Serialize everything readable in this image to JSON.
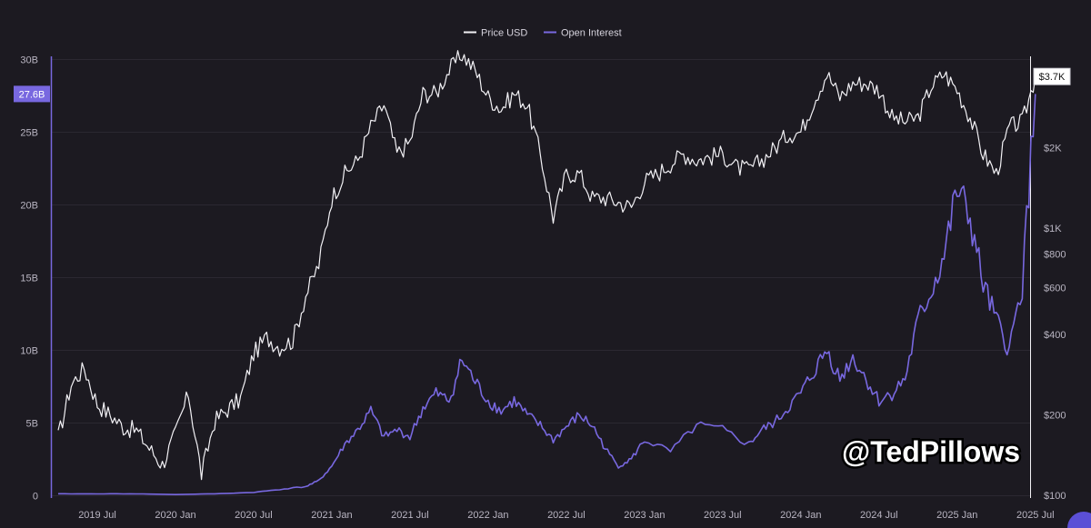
{
  "watermark": "@TedPillows",
  "colors": {
    "background": "#1c1a21",
    "price": "#f2f1f5",
    "open_interest": "#7868e0",
    "grid": "#2b2831",
    "axis_text": "#b9b5c2"
  },
  "chart_data": {
    "type": "line",
    "legend": {
      "placement": "top-center",
      "entries": [
        "Price USD",
        "Open Interest"
      ]
    },
    "grid": {
      "horizontal": true,
      "vertical": false
    },
    "x_axis": {
      "ticks": [
        "2019 Jul",
        "2020 Jan",
        "2020 Jul",
        "2021 Jan",
        "2021 Jul",
        "2022 Jan",
        "2022 Jul",
        "2023 Jan",
        "2023 Jul",
        "2024 Jan",
        "2024 Jul",
        "2025 Jan",
        "2025 Jul"
      ],
      "range": [
        "2019 Apr",
        "2025 Jul"
      ]
    },
    "y_left": {
      "ticks": [
        "0",
        "5B",
        "10B",
        "15B",
        "20B",
        "25B",
        "30B"
      ],
      "tick_values": [
        0,
        5,
        10,
        15,
        20,
        25,
        30
      ],
      "unit": "billions",
      "range": [
        0,
        30
      ],
      "marker": {
        "label": "27.6B",
        "value": 27.6
      }
    },
    "y_right": {
      "scale": "log",
      "ticks": [
        "$100",
        "$200",
        "$400",
        "$600",
        "$800",
        "$1K",
        "$2K"
      ],
      "tick_values": [
        100,
        200,
        400,
        600,
        800,
        1000,
        2000
      ],
      "range": [
        100,
        4300
      ],
      "marker": {
        "label": "$3.7K",
        "value": 3700
      }
    },
    "series": [
      {
        "name": "Price USD",
        "axis": "right",
        "x": [
          "2019 Apr",
          "2019 May",
          "2019 Jun",
          "2019 Jul",
          "2019 Aug",
          "2019 Sep",
          "2019 Oct",
          "2019 Nov",
          "2019 Dec",
          "2020 Jan",
          "2020 Feb",
          "2020 Mar",
          "2020 Apr",
          "2020 May",
          "2020 Jun",
          "2020 Jul",
          "2020 Aug",
          "2020 Sep",
          "2020 Oct",
          "2020 Nov",
          "2020 Dec",
          "2021 Jan",
          "2021 Feb",
          "2021 Mar",
          "2021 Apr",
          "2021 May",
          "2021 Jun",
          "2021 Jul",
          "2021 Aug",
          "2021 Sep",
          "2021 Oct",
          "2021 Nov",
          "2021 Dec",
          "2022 Jan",
          "2022 Feb",
          "2022 Mar",
          "2022 Apr",
          "2022 May",
          "2022 Jun",
          "2022 Jul",
          "2022 Aug",
          "2022 Sep",
          "2022 Oct",
          "2022 Nov",
          "2022 Dec",
          "2023 Jan",
          "2023 Feb",
          "2023 Mar",
          "2023 Apr",
          "2023 May",
          "2023 Jun",
          "2023 Jul",
          "2023 Aug",
          "2023 Sep",
          "2023 Oct",
          "2023 Nov",
          "2023 Dec",
          "2024 Jan",
          "2024 Feb",
          "2024 Mar",
          "2024 Apr",
          "2024 May",
          "2024 Jun",
          "2024 Jul",
          "2024 Aug",
          "2024 Sep",
          "2024 Oct",
          "2024 Nov",
          "2024 Dec",
          "2025 Jan",
          "2025 Feb",
          "2025 Mar",
          "2025 Apr",
          "2025 May",
          "2025 Jun",
          "2025 Jul"
        ],
        "values": [
          165,
          260,
          300,
          220,
          200,
          180,
          175,
          150,
          130,
          170,
          240,
          120,
          190,
          210,
          230,
          340,
          390,
          360,
          380,
          560,
          730,
          1300,
          1600,
          1800,
          2400,
          2900,
          1900,
          2100,
          3200,
          3200,
          3900,
          4500,
          3900,
          3100,
          2800,
          3200,
          2900,
          1900,
          1100,
          1600,
          1600,
          1300,
          1300,
          1250,
          1200,
          1500,
          1600,
          1750,
          1900,
          1800,
          1850,
          1900,
          1700,
          1650,
          1800,
          2000,
          2250,
          2300,
          3000,
          3800,
          3100,
          3500,
          3500,
          3300,
          2600,
          2500,
          2600,
          3400,
          3800,
          3300,
          2600,
          1900,
          1600,
          2400,
          2500,
          3700
        ]
      },
      {
        "name": "Open Interest",
        "axis": "left",
        "unit": "billions",
        "x": [
          "2019 Apr",
          "2019 Jul",
          "2019 Oct",
          "2020 Jan",
          "2020 Apr",
          "2020 Jul",
          "2020 Sep",
          "2020 Nov",
          "2020 Dec",
          "2021 Jan",
          "2021 Feb",
          "2021 Mar",
          "2021 Apr",
          "2021 May",
          "2021 Jun",
          "2021 Jul",
          "2021 Aug",
          "2021 Sep",
          "2021 Oct",
          "2021 Nov",
          "2021 Dec",
          "2022 Jan",
          "2022 Feb",
          "2022 Mar",
          "2022 Apr",
          "2022 May",
          "2022 Jun",
          "2022 Jul",
          "2022 Aug",
          "2022 Sep",
          "2022 Oct",
          "2022 Nov",
          "2022 Dec",
          "2023 Jan",
          "2023 Mar",
          "2023 May",
          "2023 Jul",
          "2023 Sep",
          "2023 Oct",
          "2023 Nov",
          "2023 Dec",
          "2024 Jan",
          "2024 Feb",
          "2024 Mar",
          "2024 Apr",
          "2024 May",
          "2024 Jun",
          "2024 Jul",
          "2024 Aug",
          "2024 Sep",
          "2024 Oct",
          "2024 Nov",
          "2024 Dec",
          "2025 Jan",
          "2025 Feb",
          "2025 Mar",
          "2025 Apr",
          "2025 May",
          "2025 Jun",
          "2025 Jul"
        ],
        "values": [
          0.1,
          0.1,
          0.1,
          0.05,
          0.1,
          0.2,
          0.4,
          0.6,
          1.0,
          2.0,
          3.5,
          4.5,
          5.8,
          4.0,
          4.5,
          4.0,
          6.0,
          7.0,
          6.5,
          9.3,
          7.8,
          6.5,
          5.8,
          6.5,
          5.5,
          4.8,
          3.8,
          4.7,
          5.5,
          4.8,
          3.2,
          2.0,
          2.5,
          3.8,
          3.0,
          4.8,
          4.5,
          3.5,
          4.5,
          5.0,
          6.0,
          7.0,
          8.5,
          10.0,
          8.0,
          9.5,
          8.0,
          6.5,
          7.0,
          8.0,
          12.0,
          14.0,
          16.5,
          21.0,
          19.0,
          14.5,
          12.0,
          10.0,
          14.5,
          27.6
        ]
      }
    ]
  }
}
